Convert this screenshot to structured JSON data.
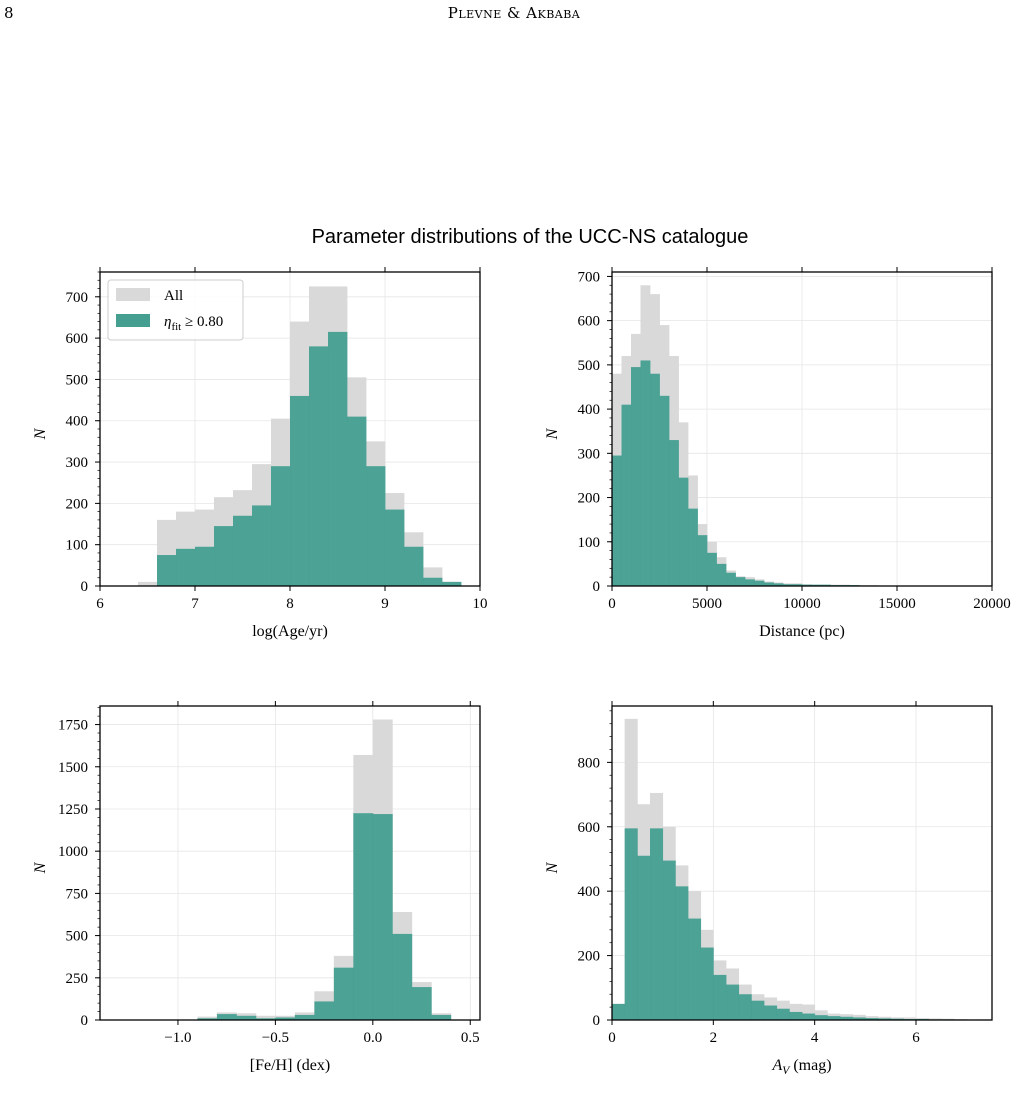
{
  "header": {
    "page_number": "8",
    "running_head": "Plevne & Akbaba"
  },
  "figure": {
    "title": "Parameter distributions of the UCC-NS catalogue"
  },
  "chart_data": [
    {
      "type": "bar",
      "id": "age",
      "xlabel": "log(Age/yr)",
      "ylabel": "N",
      "xlim": [
        6,
        10
      ],
      "ylim": [
        0,
        760
      ],
      "xticks": [
        "6",
        "7",
        "8",
        "9",
        "10"
      ],
      "yticks": [
        "0",
        "100",
        "200",
        "300",
        "400",
        "500",
        "600",
        "700"
      ],
      "grid": true,
      "legend": {
        "placement": "top-left",
        "entries": [
          "All",
          "η_fit ≥ 0.80"
        ]
      },
      "bin_edges": [
        6.0,
        6.2,
        6.4,
        6.6,
        6.8,
        7.0,
        7.2,
        7.4,
        7.6,
        7.8,
        8.0,
        8.2,
        8.4,
        8.6,
        8.8,
        9.0,
        9.2,
        9.4,
        9.6,
        9.8,
        10.0
      ],
      "series": [
        {
          "name": "All",
          "color": "#d9d9d9",
          "values": [
            0,
            0,
            10,
            160,
            180,
            185,
            215,
            232,
            295,
            405,
            640,
            725,
            725,
            505,
            350,
            225,
            130,
            45,
            10,
            0
          ]
        },
        {
          "name": "η_fit ≥ 0.80",
          "color": "#449f91",
          "values": [
            0,
            0,
            0,
            75,
            90,
            95,
            145,
            170,
            195,
            290,
            460,
            580,
            615,
            410,
            290,
            185,
            95,
            20,
            10,
            0
          ]
        }
      ]
    },
    {
      "type": "bar",
      "id": "distance",
      "xlabel": "Distance (pc)",
      "ylabel": "N",
      "xlim": [
        0,
        20000
      ],
      "ylim": [
        0,
        710
      ],
      "xticks": [
        "0",
        "5000",
        "10000",
        "15000",
        "20000"
      ],
      "yticks": [
        "0",
        "100",
        "200",
        "300",
        "400",
        "500",
        "600",
        "700"
      ],
      "grid": true,
      "bin_edges": [
        0,
        500,
        1000,
        1500,
        2000,
        2500,
        3000,
        3500,
        4000,
        4500,
        5000,
        5500,
        6000,
        6500,
        7000,
        7500,
        8000,
        8500,
        9000,
        9500,
        10000,
        10500,
        11000,
        11500,
        12000,
        12500,
        13000,
        13500,
        14000,
        14500,
        15000,
        15500,
        16000,
        16500,
        17000,
        17500,
        18000,
        18500,
        19000,
        19500,
        20000
      ],
      "series": [
        {
          "name": "All",
          "color": "#d9d9d9",
          "values": [
            480,
            520,
            570,
            680,
            660,
            590,
            520,
            370,
            250,
            140,
            100,
            65,
            35,
            22,
            20,
            15,
            10,
            8,
            6,
            6,
            4,
            3,
            3,
            3,
            3,
            2,
            2,
            2,
            1,
            1,
            1,
            1,
            1,
            1,
            1,
            1,
            1,
            1,
            1,
            1
          ]
        },
        {
          "name": "η_fit ≥ 0.80",
          "color": "#449f91",
          "values": [
            295,
            410,
            495,
            510,
            480,
            430,
            330,
            245,
            175,
            115,
            75,
            50,
            30,
            20,
            15,
            12,
            8,
            6,
            4,
            4,
            3,
            3,
            3,
            2,
            2,
            2,
            1,
            1,
            1,
            1,
            1,
            1,
            1,
            1,
            1,
            1,
            1,
            1,
            1,
            1
          ]
        }
      ]
    },
    {
      "type": "bar",
      "id": "metallicity",
      "xlabel": "[Fe/H] (dex)",
      "ylabel": "N",
      "xlim": [
        -1.4,
        0.55
      ],
      "ylim": [
        0,
        1860
      ],
      "xticks": [
        "−1.0",
        "−0.5",
        "0.0",
        "0.5"
      ],
      "yticks": [
        "0",
        "250",
        "500",
        "750",
        "1000",
        "1250",
        "1500",
        "1750"
      ],
      "grid": true,
      "bin_edges": [
        -0.9,
        -0.8,
        -0.7,
        -0.6,
        -0.5,
        -0.4,
        -0.3,
        -0.2,
        -0.1,
        0.0,
        0.1,
        0.2,
        0.3,
        0.4
      ],
      "series": [
        {
          "name": "All",
          "color": "#d9d9d9",
          "values": [
            20,
            45,
            40,
            25,
            25,
            45,
            170,
            380,
            1570,
            1780,
            640,
            225,
            40
          ]
        },
        {
          "name": "η_fit ≥ 0.80",
          "color": "#449f91",
          "values": [
            10,
            35,
            25,
            10,
            15,
            30,
            110,
            310,
            1225,
            1220,
            510,
            195,
            30
          ]
        }
      ]
    },
    {
      "type": "bar",
      "id": "extinction",
      "xlabel": "A_V (mag)",
      "ylabel": "N",
      "xlim": [
        0,
        7.5
      ],
      "ylim": [
        0,
        975
      ],
      "xticks": [
        "0",
        "2",
        "4",
        "6"
      ],
      "yticks": [
        "0",
        "200",
        "400",
        "600",
        "800"
      ],
      "grid": true,
      "bin_edges": [
        0.0,
        0.25,
        0.5,
        0.75,
        1.0,
        1.25,
        1.5,
        1.75,
        2.0,
        2.25,
        2.5,
        2.75,
        3.0,
        3.25,
        3.5,
        3.75,
        4.0,
        4.25,
        4.5,
        4.75,
        5.0,
        5.25,
        5.5,
        5.75,
        6.0,
        6.25,
        6.5,
        6.75,
        7.0,
        7.25,
        7.5
      ],
      "series": [
        {
          "name": "All",
          "color": "#d9d9d9",
          "values": [
            50,
            935,
            670,
            705,
            600,
            480,
            400,
            280,
            185,
            160,
            110,
            80,
            70,
            60,
            50,
            48,
            30,
            20,
            18,
            16,
            12,
            10,
            8,
            8,
            6,
            5,
            4,
            3,
            2,
            2
          ]
        },
        {
          "name": "η_fit ≥ 0.80",
          "color": "#449f91",
          "values": [
            50,
            595,
            510,
            595,
            495,
            415,
            315,
            225,
            140,
            110,
            80,
            60,
            45,
            35,
            25,
            20,
            15,
            12,
            10,
            8,
            6,
            5,
            4,
            3,
            3,
            2,
            2,
            1,
            1,
            1
          ]
        }
      ]
    }
  ]
}
